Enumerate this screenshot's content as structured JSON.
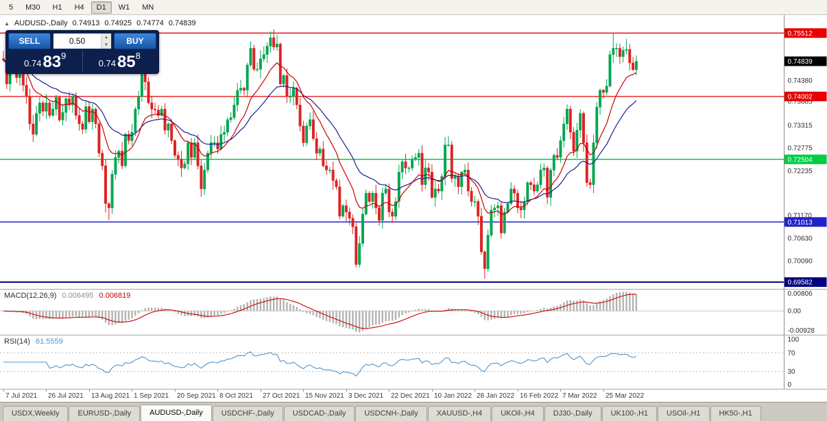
{
  "toolbar": {
    "timeframes": [
      "5",
      "M30",
      "H1",
      "H4",
      "D1",
      "W1",
      "MN"
    ],
    "active": "D1"
  },
  "chart_header": {
    "symbol": "AUDUSD-,Daily",
    "open": "0.74913",
    "high": "0.74925",
    "low": "0.74774",
    "close": "0.74839"
  },
  "trade_panel": {
    "sell_label": "SELL",
    "buy_label": "BUY",
    "lot_size": "0.50",
    "sell_base": "0.74",
    "sell_pips": "83",
    "sell_frac": "9",
    "buy_base": "0.74",
    "buy_pips": "85",
    "buy_frac": "8"
  },
  "levels": [
    {
      "price": 0.75512,
      "label": "0.75512",
      "color": "#e60000",
      "width": 1.3
    },
    {
      "price": 0.74002,
      "label": "0.74002",
      "color": "#e60000",
      "width": 1.3
    },
    {
      "price": 0.72504,
      "label": "0.72504",
      "color": "#00cc44",
      "width": 1.5
    },
    {
      "price": 0.71013,
      "label": "0.71013",
      "color": "#2222cc",
      "width": 1.5
    },
    {
      "price": 0.69582,
      "label": "0.69582",
      "color": "#000080",
      "width": 2
    }
  ],
  "current_price": {
    "price": 0.74839,
    "label": "0.74839",
    "chip_bg": "#000000"
  },
  "price_axis": {
    "labels": [
      {
        "text": "0.74380",
        "price": 0.7438
      },
      {
        "text": "0.73885",
        "price": 0.73885
      },
      {
        "text": "0.73315",
        "price": 0.73315
      },
      {
        "text": "0.72775",
        "price": 0.72775
      },
      {
        "text": "0.72235",
        "price": 0.72235
      },
      {
        "text": "0.71170",
        "price": 0.7117
      },
      {
        "text": "0.70630",
        "price": 0.7063
      },
      {
        "text": "0.70090",
        "price": 0.7009
      }
    ]
  },
  "macd_panel": {
    "title": "MACD(12,26,9)",
    "value_main": "0.006495",
    "value_signal": "0.006819",
    "axis_labels": [
      {
        "text": "0.00806",
        "v": 0.00806
      },
      {
        "text": "0.00",
        "v": 0
      },
      {
        "text": "-0.00928",
        "v": -0.00928
      }
    ],
    "range": [
      -0.0095,
      0.0085
    ]
  },
  "rsi_panel": {
    "title": "RSI(14)",
    "value": "61.5559",
    "axis_labels": [
      {
        "text": "100",
        "v": 100
      },
      {
        "text": "70",
        "v": 70
      },
      {
        "text": "30",
        "v": 30
      },
      {
        "text": "0",
        "v": 0
      }
    ],
    "guides": [
      70,
      30
    ],
    "range": [
      0,
      100
    ]
  },
  "x_axis": {
    "labels": [
      "7 Jul 2021",
      "26 Jul 2021",
      "13 Aug 2021",
      "1 Sep 2021",
      "20 Sep 2021",
      "8 Oct 2021",
      "27 Oct 2021",
      "15 Nov 2021",
      "3 Dec 2021",
      "22 Dec 2021",
      "10 Jan 2022",
      "28 Jan 2022",
      "16 Feb 2022",
      "7 Mar 2022",
      "25 Mar 2022"
    ],
    "label_indices": [
      0,
      13,
      26,
      39,
      52,
      65,
      78,
      91,
      104,
      117,
      130,
      143,
      156,
      169,
      182
    ]
  },
  "tabs": {
    "items": [
      "USDX,Weekly",
      "EURUSD-,Daily",
      "AUDUSD-,Daily",
      "USDCHF-,Daily",
      "USDCAD-,Daily",
      "USDCNH-,Daily",
      "XAUUSD-,H4",
      "UKOil-,H4",
      "DJ30-,Daily",
      "UK100-,H1",
      "USOil-,H1",
      "HK50-,H1"
    ],
    "active": "AUDUSD-,Daily"
  },
  "chart_data": {
    "type": "candlestick",
    "title": "AUDUSD-,Daily",
    "y_range": [
      0.6942,
      0.7594
    ],
    "first_open": 0.749,
    "ma_fast_period": 12,
    "ma_slow_period": 26,
    "macd_params": [
      12,
      26,
      9
    ],
    "rsi_period": 14,
    "closes": [
      0.7487,
      0.743,
      0.7487,
      0.7485,
      0.7445,
      0.7483,
      0.7427,
      0.74,
      0.7335,
      0.731,
      0.736,
      0.7385,
      0.7365,
      0.7385,
      0.7355,
      0.737,
      0.7398,
      0.7344,
      0.7362,
      0.7395,
      0.738,
      0.74,
      0.7355,
      0.7335,
      0.7322,
      0.7376,
      0.734,
      0.737,
      0.7335,
      0.7265,
      0.7235,
      0.7145,
      0.7135,
      0.7215,
      0.7255,
      0.727,
      0.7235,
      0.731,
      0.7295,
      0.7315,
      0.737,
      0.74,
      0.7455,
      0.7435,
      0.7385,
      0.737,
      0.7368,
      0.7355,
      0.737,
      0.732,
      0.7335,
      0.7295,
      0.726,
      0.725,
      0.723,
      0.724,
      0.729,
      0.7255,
      0.729,
      0.7235,
      0.718,
      0.7225,
      0.7265,
      0.729,
      0.729,
      0.7275,
      0.731,
      0.7315,
      0.7345,
      0.735,
      0.738,
      0.7415,
      0.742,
      0.7415,
      0.7475,
      0.7515,
      0.7465,
      0.7465,
      0.749,
      0.75,
      0.752,
      0.754,
      0.7518,
      0.7525,
      0.743,
      0.745,
      0.74,
      0.74,
      0.742,
      0.738,
      0.733,
      0.729,
      0.733,
      0.7345,
      0.73,
      0.7265,
      0.7275,
      0.7235,
      0.7225,
      0.7225,
      0.72,
      0.7185,
      0.7115,
      0.714,
      0.7125,
      0.711,
      0.709,
      0.7,
      0.705,
      0.712,
      0.717,
      0.715,
      0.717,
      0.7135,
      0.7105,
      0.717,
      0.718,
      0.7125,
      0.7115,
      0.715,
      0.722,
      0.7245,
      0.723,
      0.723,
      0.725,
      0.7255,
      0.7265,
      0.719,
      0.723,
      0.722,
      0.716,
      0.718,
      0.7175,
      0.721,
      0.7285,
      0.7285,
      0.7205,
      0.721,
      0.7185,
      0.722,
      0.7225,
      0.7175,
      0.715,
      0.715,
      0.7115,
      0.703,
      0.699,
      0.707,
      0.713,
      0.7135,
      0.714,
      0.7075,
      0.7125,
      0.7145,
      0.718,
      0.717,
      0.7135,
      0.713,
      0.715,
      0.7195,
      0.719,
      0.7175,
      0.719,
      0.7225,
      0.723,
      0.716,
      0.7225,
      0.726,
      0.7255,
      0.7295,
      0.7335,
      0.737,
      0.7315,
      0.727,
      0.732,
      0.736,
      0.729,
      0.7195,
      0.719,
      0.729,
      0.7375,
      0.7415,
      0.741,
      0.7425,
      0.75,
      0.7515,
      0.7515,
      0.7495,
      0.751,
      0.7512,
      0.748,
      0.7464,
      0.7484
    ],
    "high_overrides": {
      "42": 0.7478,
      "81": 0.7555,
      "185": 0.7551,
      "189": 0.7537
    },
    "low_overrides": {
      "32": 0.7106,
      "107": 0.6993,
      "146": 0.6966
    },
    "colors": {
      "up": "#00a651",
      "down": "#dd2222",
      "ma_fast": "#cc0000",
      "ma_slow": "#1c1c8f",
      "macd_hist": "#b2b2b2",
      "macd_signal": "#cc0000",
      "rsi": "#4f94cd"
    }
  }
}
